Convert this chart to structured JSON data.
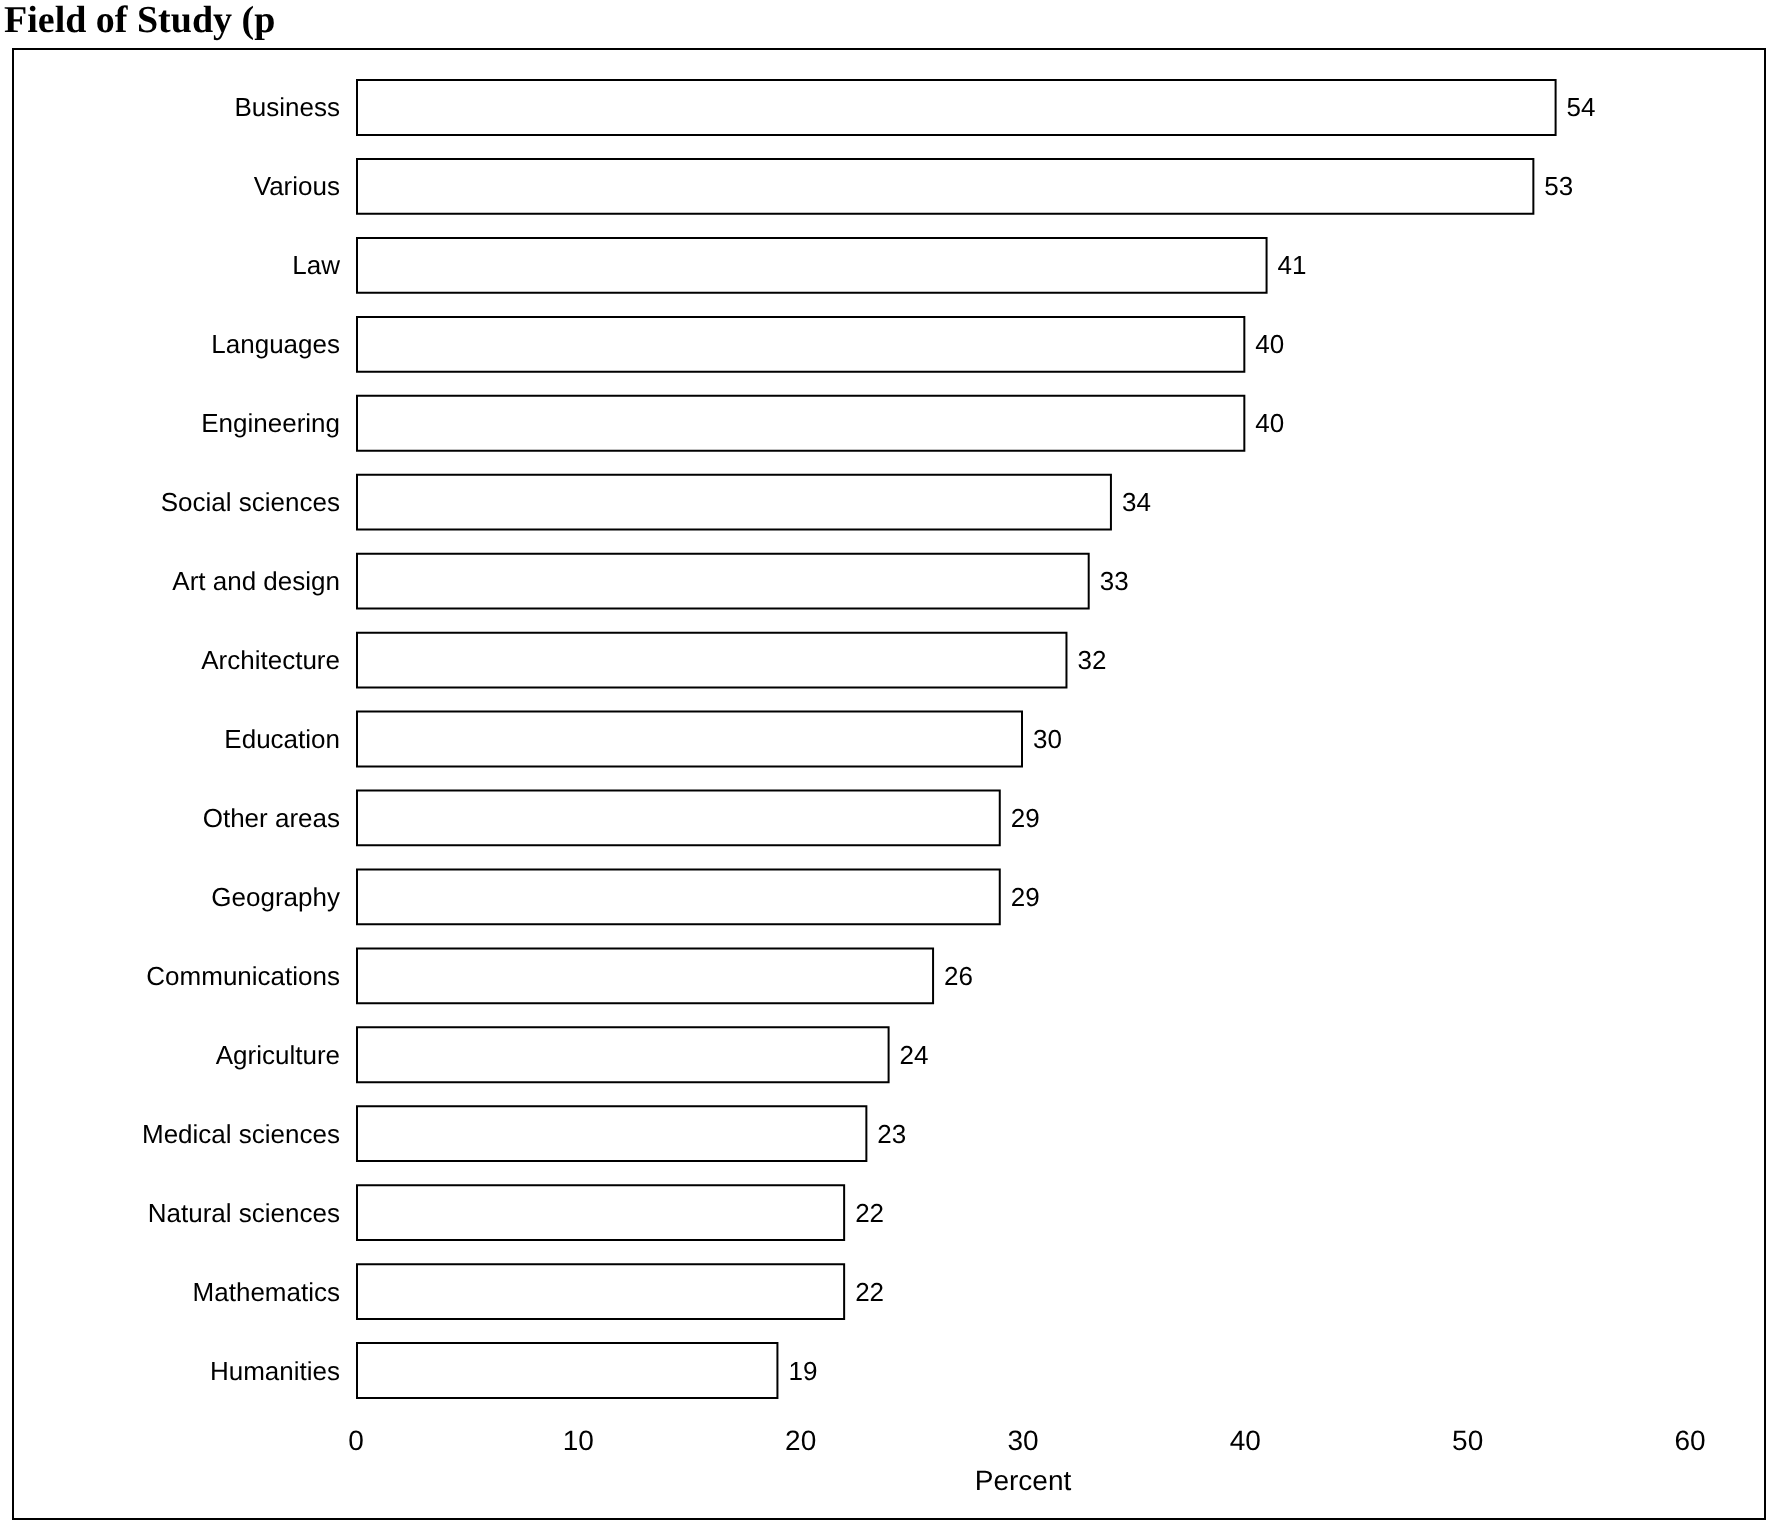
{
  "chart_data": {
    "type": "bar",
    "orientation": "horizontal",
    "title": "Field of Study (p",
    "xlabel": "Percent",
    "categories": [
      "Business",
      "Various",
      "Law",
      "Languages",
      "Engineering",
      "Social sciences",
      "Art and design",
      "Architecture",
      "Education",
      "Other areas",
      "Geography",
      "Communications",
      "Agriculture",
      "Medical sciences",
      "Natural sciences",
      "Mathematics",
      "Humanities"
    ],
    "values": [
      54,
      53,
      41,
      40,
      40,
      34,
      33,
      32,
      30,
      29,
      29,
      26,
      24,
      23,
      22,
      22,
      19
    ],
    "color": "#ffffff",
    "xlim": [
      0,
      60
    ],
    "xticks": [
      0,
      10,
      20,
      30,
      40,
      50,
      60
    ],
    "data_labels": true,
    "grid": false
  }
}
